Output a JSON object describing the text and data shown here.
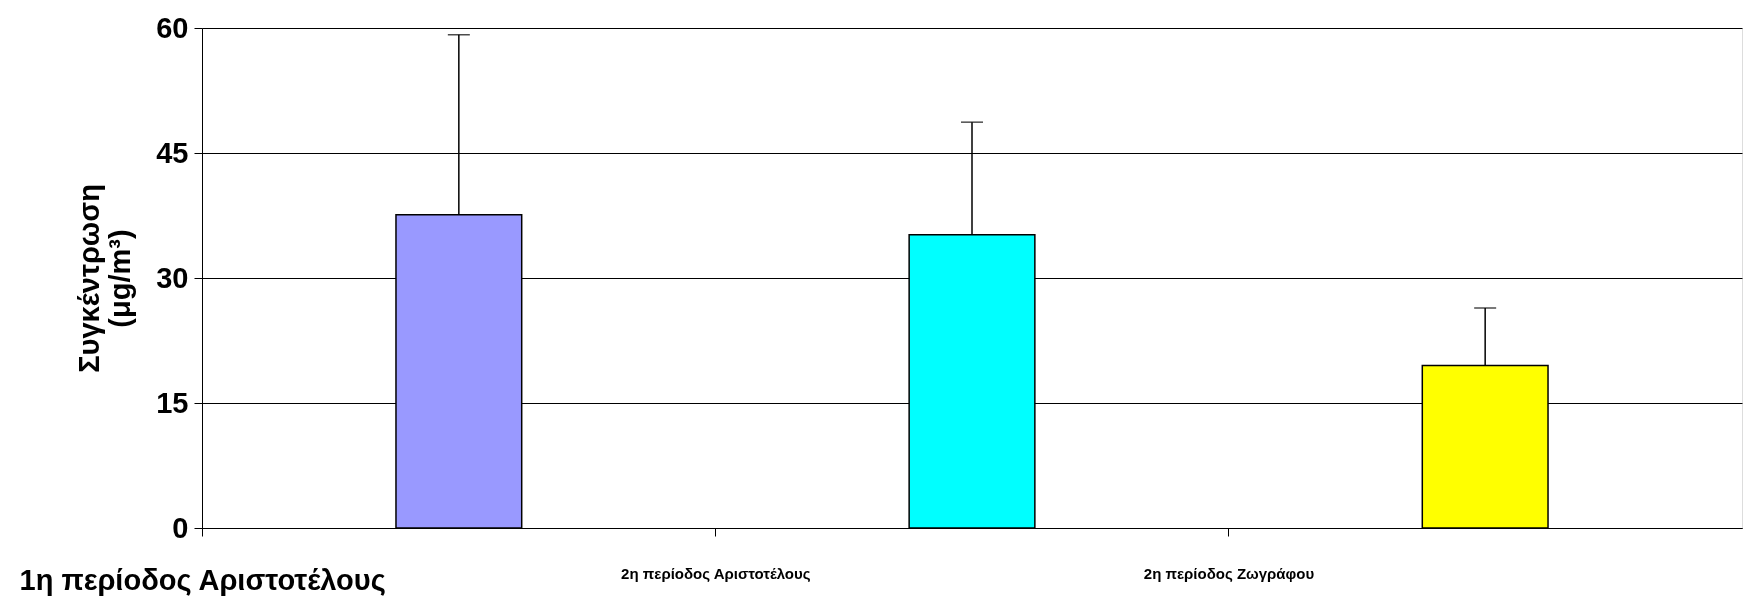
{
  "chart_data": {
    "type": "bar",
    "categories": [
      "1η περίοδος Αριστοτέλους",
      "2η περίοδος Αριστοτέλους",
      "2η περίοδος Ζωγράφου"
    ],
    "values": [
      37.6,
      35.2,
      19.5
    ],
    "colors": [
      "#9999ff",
      "#00ffff",
      "#ffff00"
    ],
    "errors": [
      [
        37.6,
        59.2
      ],
      [
        35.2,
        48.7
      ],
      [
        19.5,
        26.4
      ]
    ],
    "ylabel": "Συγκέντρωση (μg/m³)",
    "ylim": [
      0,
      60
    ],
    "yticks": [
      0,
      15,
      30,
      45,
      60
    ],
    "grid": "y"
  }
}
